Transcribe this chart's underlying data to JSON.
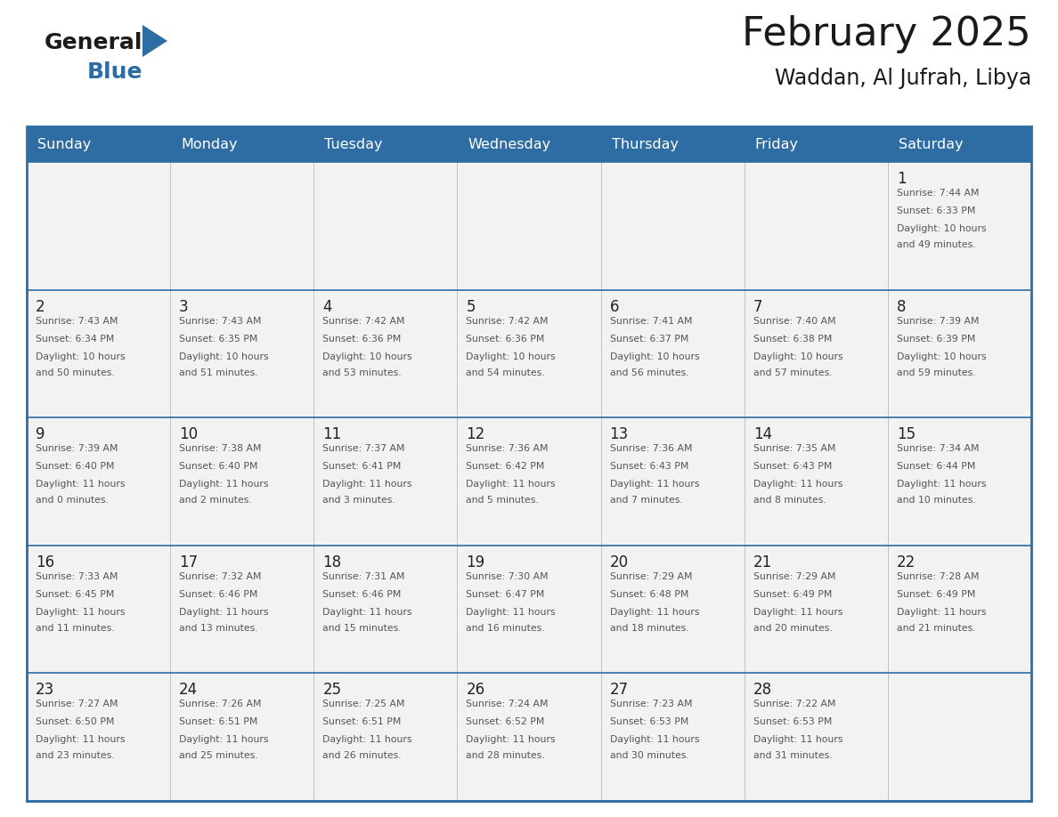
{
  "title": "February 2025",
  "subtitle": "Waddan, Al Jufrah, Libya",
  "days_of_week": [
    "Sunday",
    "Monday",
    "Tuesday",
    "Wednesday",
    "Thursday",
    "Friday",
    "Saturday"
  ],
  "header_bg": "#2e6da4",
  "header_text": "#ffffff",
  "cell_bg": "#f2f2f2",
  "text_color": "#555555",
  "day_num_color": "#222222",
  "line_color": "#2e6da4",
  "title_color": "#1a1a1a",
  "calendar": [
    [
      null,
      null,
      null,
      null,
      null,
      null,
      {
        "day": 1,
        "sunrise": "7:44 AM",
        "sunset": "6:33 PM",
        "daylight": "10 hours and 49 minutes."
      }
    ],
    [
      {
        "day": 2,
        "sunrise": "7:43 AM",
        "sunset": "6:34 PM",
        "daylight": "10 hours and 50 minutes."
      },
      {
        "day": 3,
        "sunrise": "7:43 AM",
        "sunset": "6:35 PM",
        "daylight": "10 hours and 51 minutes."
      },
      {
        "day": 4,
        "sunrise": "7:42 AM",
        "sunset": "6:36 PM",
        "daylight": "10 hours and 53 minutes."
      },
      {
        "day": 5,
        "sunrise": "7:42 AM",
        "sunset": "6:36 PM",
        "daylight": "10 hours and 54 minutes."
      },
      {
        "day": 6,
        "sunrise": "7:41 AM",
        "sunset": "6:37 PM",
        "daylight": "10 hours and 56 minutes."
      },
      {
        "day": 7,
        "sunrise": "7:40 AM",
        "sunset": "6:38 PM",
        "daylight": "10 hours and 57 minutes."
      },
      {
        "day": 8,
        "sunrise": "7:39 AM",
        "sunset": "6:39 PM",
        "daylight": "10 hours and 59 minutes."
      }
    ],
    [
      {
        "day": 9,
        "sunrise": "7:39 AM",
        "sunset": "6:40 PM",
        "daylight": "11 hours and 0 minutes."
      },
      {
        "day": 10,
        "sunrise": "7:38 AM",
        "sunset": "6:40 PM",
        "daylight": "11 hours and 2 minutes."
      },
      {
        "day": 11,
        "sunrise": "7:37 AM",
        "sunset": "6:41 PM",
        "daylight": "11 hours and 3 minutes."
      },
      {
        "day": 12,
        "sunrise": "7:36 AM",
        "sunset": "6:42 PM",
        "daylight": "11 hours and 5 minutes."
      },
      {
        "day": 13,
        "sunrise": "7:36 AM",
        "sunset": "6:43 PM",
        "daylight": "11 hours and 7 minutes."
      },
      {
        "day": 14,
        "sunrise": "7:35 AM",
        "sunset": "6:43 PM",
        "daylight": "11 hours and 8 minutes."
      },
      {
        "day": 15,
        "sunrise": "7:34 AM",
        "sunset": "6:44 PM",
        "daylight": "11 hours and 10 minutes."
      }
    ],
    [
      {
        "day": 16,
        "sunrise": "7:33 AM",
        "sunset": "6:45 PM",
        "daylight": "11 hours and 11 minutes."
      },
      {
        "day": 17,
        "sunrise": "7:32 AM",
        "sunset": "6:46 PM",
        "daylight": "11 hours and 13 minutes."
      },
      {
        "day": 18,
        "sunrise": "7:31 AM",
        "sunset": "6:46 PM",
        "daylight": "11 hours and 15 minutes."
      },
      {
        "day": 19,
        "sunrise": "7:30 AM",
        "sunset": "6:47 PM",
        "daylight": "11 hours and 16 minutes."
      },
      {
        "day": 20,
        "sunrise": "7:29 AM",
        "sunset": "6:48 PM",
        "daylight": "11 hours and 18 minutes."
      },
      {
        "day": 21,
        "sunrise": "7:29 AM",
        "sunset": "6:49 PM",
        "daylight": "11 hours and 20 minutes."
      },
      {
        "day": 22,
        "sunrise": "7:28 AM",
        "sunset": "6:49 PM",
        "daylight": "11 hours and 21 minutes."
      }
    ],
    [
      {
        "day": 23,
        "sunrise": "7:27 AM",
        "sunset": "6:50 PM",
        "daylight": "11 hours and 23 minutes."
      },
      {
        "day": 24,
        "sunrise": "7:26 AM",
        "sunset": "6:51 PM",
        "daylight": "11 hours and 25 minutes."
      },
      {
        "day": 25,
        "sunrise": "7:25 AM",
        "sunset": "6:51 PM",
        "daylight": "11 hours and 26 minutes."
      },
      {
        "day": 26,
        "sunrise": "7:24 AM",
        "sunset": "6:52 PM",
        "daylight": "11 hours and 28 minutes."
      },
      {
        "day": 27,
        "sunrise": "7:23 AM",
        "sunset": "6:53 PM",
        "daylight": "11 hours and 30 minutes."
      },
      {
        "day": 28,
        "sunrise": "7:22 AM",
        "sunset": "6:53 PM",
        "daylight": "11 hours and 31 minutes."
      },
      null
    ]
  ]
}
